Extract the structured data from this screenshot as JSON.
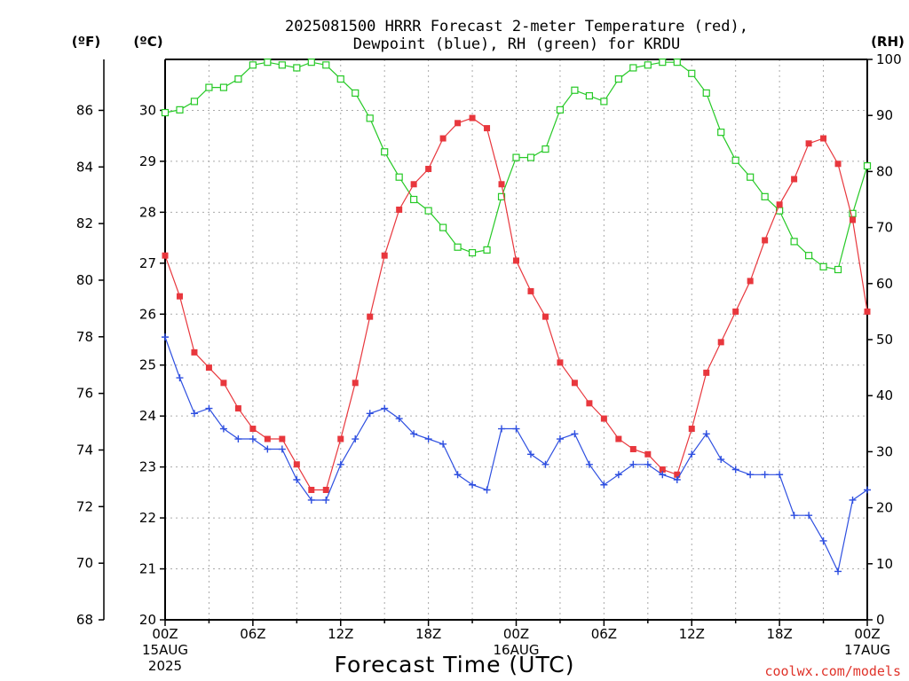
{
  "title": {
    "line1": "2025081500 HRRR Forecast 2-meter Temperature (red),",
    "line2": "Dewpoint (blue), RH (green) for KRDU"
  },
  "units": {
    "left_f": "(ºF)",
    "left_c": "(ºC)",
    "right": "(RH)"
  },
  "credit": "coolwx.com/models",
  "colors": {
    "temp": "#e8373d",
    "dewpoint": "#2e4fe0",
    "rh": "#26c926"
  },
  "chart_data": {
    "type": "line",
    "xlabel": "Forecast Time (UTC)",
    "x": [
      0,
      1,
      2,
      3,
      4,
      5,
      6,
      7,
      8,
      9,
      10,
      11,
      12,
      13,
      14,
      15,
      16,
      17,
      18,
      19,
      20,
      21,
      22,
      23,
      24,
      25,
      26,
      27,
      28,
      29,
      30,
      31,
      32,
      33,
      34,
      35,
      36,
      37,
      38,
      39,
      40,
      41,
      42,
      43,
      44,
      45,
      46,
      47,
      48
    ],
    "x_tick_hours": [
      0,
      6,
      12,
      18,
      24,
      30,
      36,
      42,
      48
    ],
    "x_tick_labels": [
      "00Z",
      "06Z",
      "12Z",
      "18Z",
      "00Z",
      "06Z",
      "12Z",
      "18Z",
      "00Z"
    ],
    "x_date_labels": [
      {
        "hour": 0,
        "lines": [
          "15AUG",
          "2025"
        ]
      },
      {
        "hour": 24,
        "lines": [
          "16AUG"
        ]
      },
      {
        "hour": 48,
        "lines": [
          "17AUG"
        ]
      }
    ],
    "left_axis_c": {
      "range": [
        20,
        31
      ],
      "ticks": [
        20,
        21,
        22,
        23,
        24,
        25,
        26,
        27,
        28,
        29,
        30
      ]
    },
    "left_axis_f": {
      "range": [
        68,
        87.8
      ],
      "ticks": [
        68,
        70,
        72,
        74,
        76,
        78,
        80,
        82,
        84,
        86
      ]
    },
    "right_axis_rh": {
      "range": [
        0,
        100
      ],
      "ticks": [
        0,
        10,
        20,
        30,
        40,
        50,
        60,
        70,
        80,
        90,
        100
      ]
    },
    "grid": true,
    "series": [
      {
        "name": "Temperature",
        "unit": "C",
        "color": "red",
        "marker": "filled-square",
        "values": [
          27.15,
          26.35,
          25.25,
          24.95,
          24.65,
          24.15,
          23.75,
          23.55,
          23.55,
          23.05,
          22.55,
          22.55,
          23.55,
          24.65,
          25.95,
          27.15,
          28.05,
          28.55,
          28.85,
          29.45,
          29.75,
          29.85,
          29.65,
          28.55,
          27.05,
          26.45,
          25.95,
          25.05,
          24.65,
          24.25,
          23.95,
          23.55,
          23.35,
          23.25,
          22.95,
          22.85,
          23.75,
          24.85,
          25.45,
          26.05,
          26.65,
          27.45,
          28.15,
          28.65,
          29.35,
          29.45,
          28.95,
          27.85,
          26.05
        ]
      },
      {
        "name": "Dewpoint",
        "unit": "C",
        "color": "blue",
        "marker": "plus",
        "values": [
          25.55,
          24.75,
          24.05,
          24.15,
          23.75,
          23.55,
          23.55,
          23.35,
          23.35,
          22.75,
          22.35,
          22.35,
          23.05,
          23.55,
          24.05,
          24.15,
          23.95,
          23.65,
          23.55,
          23.45,
          22.85,
          22.65,
          22.55,
          23.75,
          23.75,
          23.25,
          23.05,
          23.55,
          23.65,
          23.05,
          22.65,
          22.85,
          23.05,
          23.05,
          22.85,
          22.75,
          23.25,
          23.65,
          23.15,
          22.95,
          22.85,
          22.85,
          22.85,
          22.05,
          22.05,
          21.55,
          20.95,
          22.35,
          22.55
        ]
      },
      {
        "name": "RH",
        "unit": "%",
        "color": "green",
        "marker": "open-square",
        "values": [
          90.5,
          91,
          92.5,
          95,
          95,
          96.5,
          99,
          99.5,
          99,
          98.5,
          99.5,
          99,
          96.5,
          94,
          89.5,
          83.5,
          79,
          75,
          73,
          70,
          66.5,
          65.5,
          66,
          75.5,
          82.5,
          82.5,
          84,
          91,
          94.5,
          93.5,
          92.5,
          96.5,
          98.5,
          99,
          99.5,
          99.5,
          97.5,
          94,
          87,
          82,
          79,
          75.5,
          73,
          67.5,
          65,
          63,
          62.5,
          72.5,
          81
        ]
      }
    ]
  }
}
